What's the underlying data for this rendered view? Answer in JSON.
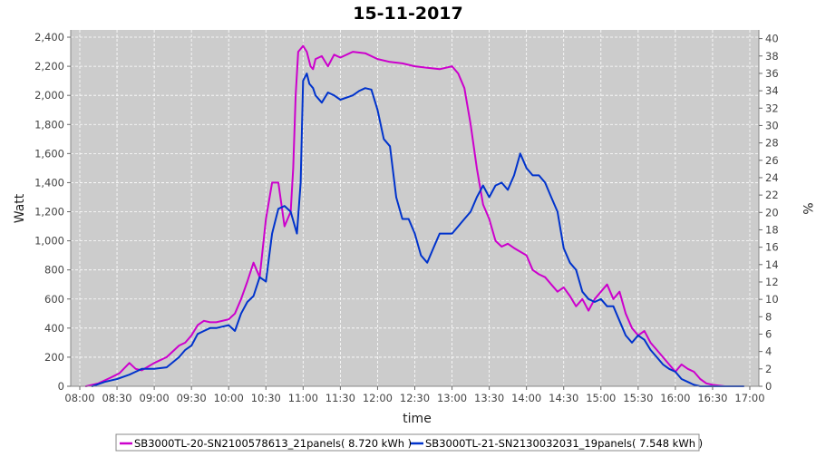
{
  "chart_data": {
    "type": "line",
    "title": "15-11-2017",
    "xlabel": "time",
    "ylabel": "Watt",
    "y2label": "%",
    "x_ticks": [
      "08:00",
      "08:30",
      "09:00",
      "09:30",
      "10:00",
      "10:30",
      "11:00",
      "11:30",
      "12:00",
      "12:30",
      "13:00",
      "13:30",
      "14:00",
      "14:30",
      "15:00",
      "15:30",
      "16:00",
      "16:30",
      "17:00"
    ],
    "ylim": [
      0,
      2450
    ],
    "y_ticks": [
      "0",
      "200",
      "400",
      "600",
      "800",
      "1,000",
      "1,200",
      "1,400",
      "1,600",
      "1,800",
      "2,000",
      "2,200",
      "2,400"
    ],
    "y2lim": [
      0,
      41
    ],
    "y2_ticks": [
      "0",
      "2",
      "4",
      "6",
      "8",
      "10",
      "12",
      "14",
      "16",
      "18",
      "20",
      "22",
      "24",
      "26",
      "28",
      "30",
      "32",
      "34",
      "36",
      "38",
      "40"
    ],
    "grid": true,
    "legend_position": "bottom",
    "colors": {
      "plot_bg": "#cccccc",
      "grid": "#ffffff",
      "series1": "#cc00cc",
      "series2": "#0033cc"
    },
    "series": [
      {
        "name": "SB3000TL-20-SN2100578613_21panels( 8.720 kWh )",
        "color": "#cc00cc",
        "x": [
          "08:05",
          "08:15",
          "08:25",
          "08:32",
          "08:40",
          "08:45",
          "08:50",
          "09:00",
          "09:10",
          "09:20",
          "09:25",
          "09:30",
          "09:35",
          "09:40",
          "09:45",
          "09:50",
          "10:00",
          "10:05",
          "10:10",
          "10:15",
          "10:20",
          "10:25",
          "10:30",
          "10:35",
          "10:40",
          "10:45",
          "10:50",
          "10:52",
          "10:54",
          "10:56",
          "11:00",
          "11:03",
          "11:06",
          "11:08",
          "11:10",
          "11:15",
          "11:20",
          "11:25",
          "11:30",
          "11:40",
          "11:50",
          "12:00",
          "12:10",
          "12:20",
          "12:30",
          "12:40",
          "12:50",
          "13:00",
          "13:05",
          "13:10",
          "13:15",
          "13:20",
          "13:25",
          "13:30",
          "13:35",
          "13:40",
          "13:45",
          "13:50",
          "14:00",
          "14:05",
          "14:10",
          "14:15",
          "14:20",
          "14:25",
          "14:30",
          "14:35",
          "14:40",
          "14:45",
          "14:50",
          "14:55",
          "15:00",
          "15:05",
          "15:10",
          "15:15",
          "15:20",
          "15:25",
          "15:30",
          "15:35",
          "15:40",
          "15:45",
          "15:50",
          "15:55",
          "16:00",
          "16:05",
          "16:10",
          "16:15",
          "16:20",
          "16:25",
          "16:30",
          "16:35",
          "16:40"
        ],
        "y": [
          0,
          20,
          60,
          90,
          160,
          120,
          110,
          160,
          200,
          280,
          300,
          350,
          420,
          450,
          440,
          440,
          460,
          500,
          600,
          720,
          850,
          750,
          1150,
          1400,
          1400,
          1100,
          1200,
          1500,
          2000,
          2300,
          2340,
          2300,
          2200,
          2180,
          2250,
          2270,
          2200,
          2280,
          2260,
          2300,
          2290,
          2250,
          2230,
          2220,
          2200,
          2190,
          2180,
          2200,
          2150,
          2050,
          1800,
          1500,
          1250,
          1150,
          1000,
          960,
          980,
          950,
          900,
          800,
          770,
          750,
          700,
          650,
          680,
          620,
          550,
          600,
          520,
          600,
          650,
          700,
          600,
          650,
          500,
          400,
          350,
          380,
          300,
          250,
          200,
          150,
          100,
          150,
          120,
          100,
          50,
          20,
          10,
          5,
          0
        ]
      },
      {
        "name": "SB3000TL-21-SN2130032031_19panels( 7.548 kWh )",
        "color": "#0033cc",
        "x": [
          "08:10",
          "08:20",
          "08:30",
          "08:40",
          "08:45",
          "08:50",
          "09:00",
          "09:10",
          "09:20",
          "09:25",
          "09:30",
          "09:35",
          "09:40",
          "09:45",
          "09:50",
          "10:00",
          "10:05",
          "10:10",
          "10:15",
          "10:20",
          "10:25",
          "10:30",
          "10:35",
          "10:40",
          "10:45",
          "10:50",
          "10:55",
          "10:58",
          "11:00",
          "11:03",
          "11:05",
          "11:08",
          "11:10",
          "11:15",
          "11:20",
          "11:25",
          "11:30",
          "11:40",
          "11:45",
          "11:50",
          "11:55",
          "12:00",
          "12:05",
          "12:10",
          "12:15",
          "12:20",
          "12:25",
          "12:30",
          "12:35",
          "12:40",
          "12:45",
          "12:50",
          "13:00",
          "13:05",
          "13:10",
          "13:15",
          "13:20",
          "13:25",
          "13:30",
          "13:35",
          "13:40",
          "13:45",
          "13:50",
          "13:55",
          "14:00",
          "14:05",
          "14:10",
          "14:15",
          "14:20",
          "14:25",
          "14:30",
          "14:35",
          "14:40",
          "14:45",
          "14:50",
          "14:55",
          "15:00",
          "15:05",
          "15:10",
          "15:15",
          "15:20",
          "15:25",
          "15:30",
          "15:35",
          "15:40",
          "15:45",
          "15:50",
          "15:55",
          "16:00",
          "16:05",
          "16:10",
          "16:15",
          "16:20",
          "16:25",
          "16:30",
          "16:35",
          "16:40",
          "16:45",
          "16:50",
          "16:55"
        ],
        "y": [
          0,
          30,
          50,
          80,
          100,
          120,
          120,
          130,
          200,
          250,
          280,
          360,
          380,
          400,
          400,
          420,
          380,
          500,
          580,
          620,
          750,
          720,
          1050,
          1220,
          1240,
          1200,
          1050,
          1400,
          2100,
          2150,
          2080,
          2050,
          2000,
          1950,
          2020,
          2000,
          1970,
          2000,
          2030,
          2050,
          2040,
          1900,
          1700,
          1650,
          1300,
          1150,
          1150,
          1050,
          900,
          850,
          950,
          1050,
          1050,
          1100,
          1150,
          1200,
          1300,
          1380,
          1300,
          1380,
          1400,
          1350,
          1450,
          1600,
          1500,
          1450,
          1450,
          1400,
          1300,
          1200,
          950,
          850,
          800,
          650,
          600,
          580,
          600,
          550,
          550,
          450,
          350,
          300,
          350,
          320,
          250,
          200,
          150,
          120,
          100,
          50,
          30,
          10,
          0,
          0,
          0,
          0,
          0,
          0,
          0,
          0
        ]
      }
    ]
  }
}
